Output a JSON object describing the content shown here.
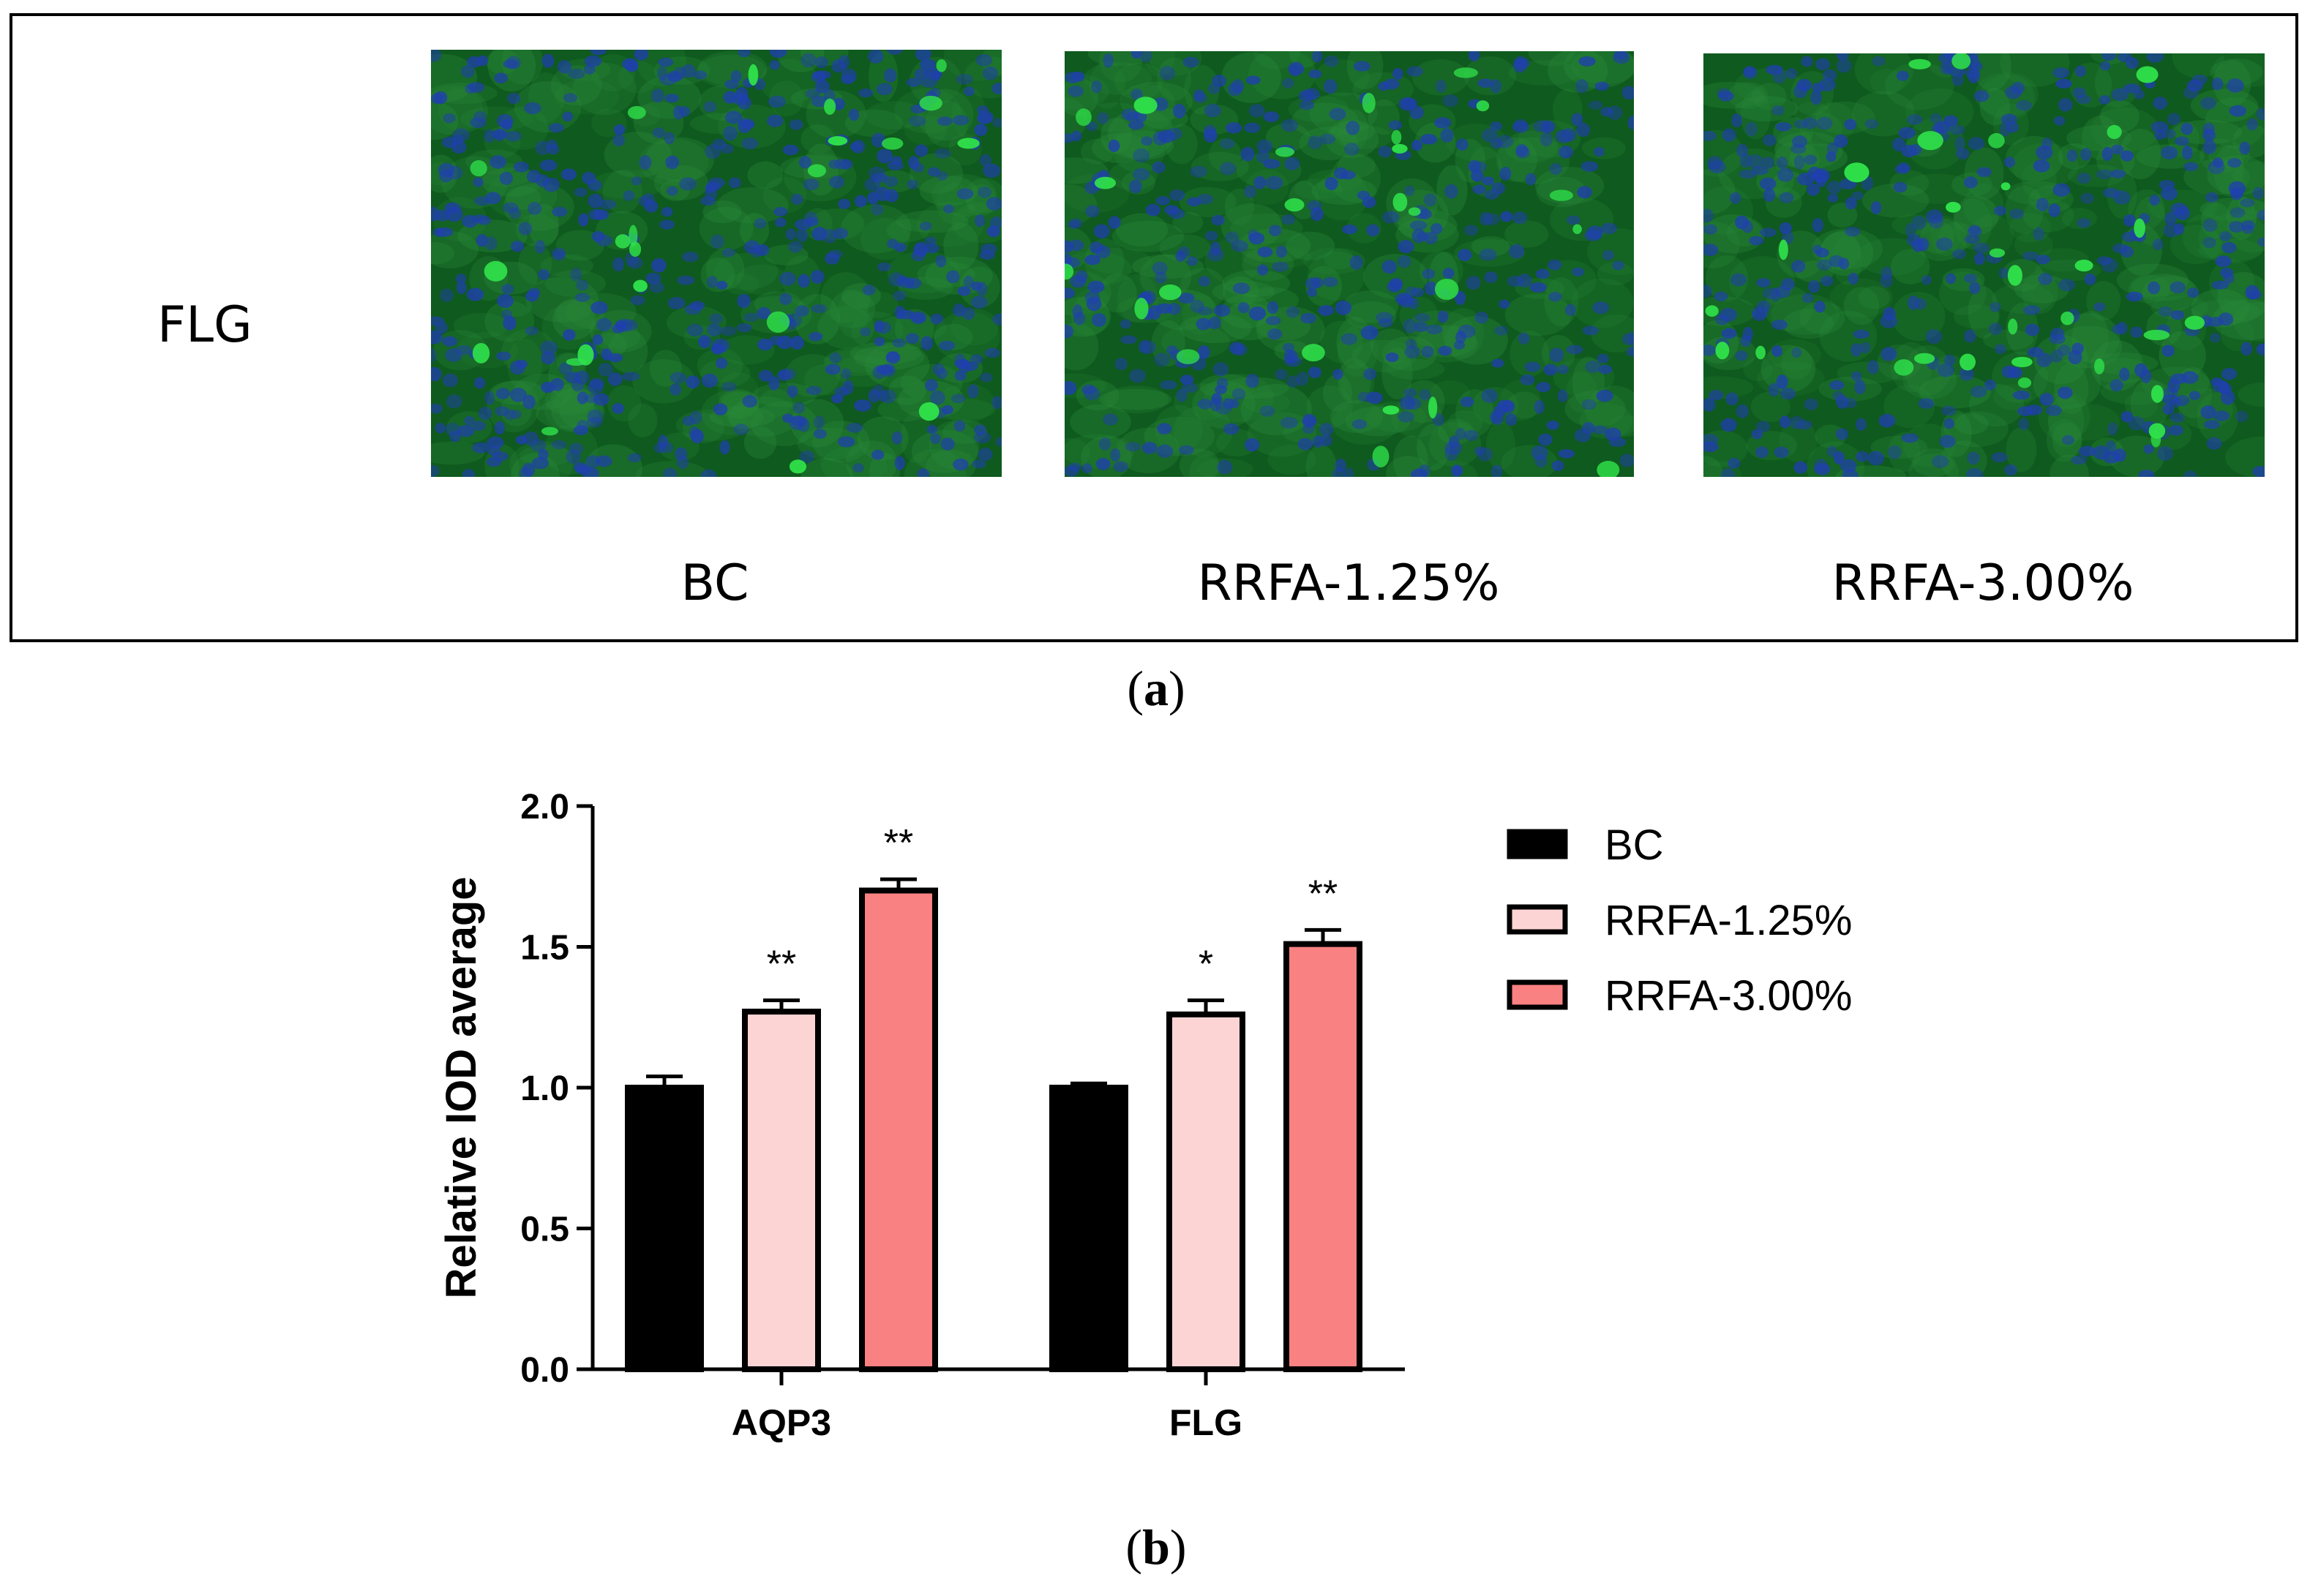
{
  "panel_a": {
    "row_label": "FLG",
    "conditions": [
      "BC",
      "RRFA-1.25%",
      "RRFA-3.00%"
    ],
    "caption_letter": "a"
  },
  "panel_b": {
    "caption_letter": "b"
  },
  "colors": {
    "BC": "#000000",
    "RRFA-1.25%": "#FDD4D4",
    "RRFA-3.00%": "#FA8181",
    "micrograph_bg": "#0f5a1e",
    "nuclei": "#1f3fb0",
    "cells": "#2fe04a"
  },
  "chart_data": {
    "type": "bar",
    "categories": [
      "AQP3",
      "FLG"
    ],
    "series": [
      {
        "name": "BC",
        "values": [
          1.0,
          1.0
        ],
        "errors": [
          0.04,
          0.015
        ],
        "significance": [
          "",
          ""
        ]
      },
      {
        "name": "RRFA-1.25%",
        "values": [
          1.27,
          1.26
        ],
        "errors": [
          0.04,
          0.05
        ],
        "significance": [
          "**",
          "*"
        ]
      },
      {
        "name": "RRFA-3.00%",
        "values": [
          1.7,
          1.51
        ],
        "errors": [
          0.04,
          0.05
        ],
        "significance": [
          "**",
          "**"
        ]
      }
    ],
    "ylabel": "Relative IOD average",
    "xlabel": "",
    "ylim": [
      0,
      2.0
    ],
    "yticks": [
      "0.0",
      "0.5",
      "1.0",
      "1.5",
      "2.0"
    ],
    "legend_position": "right",
    "grid": false
  }
}
